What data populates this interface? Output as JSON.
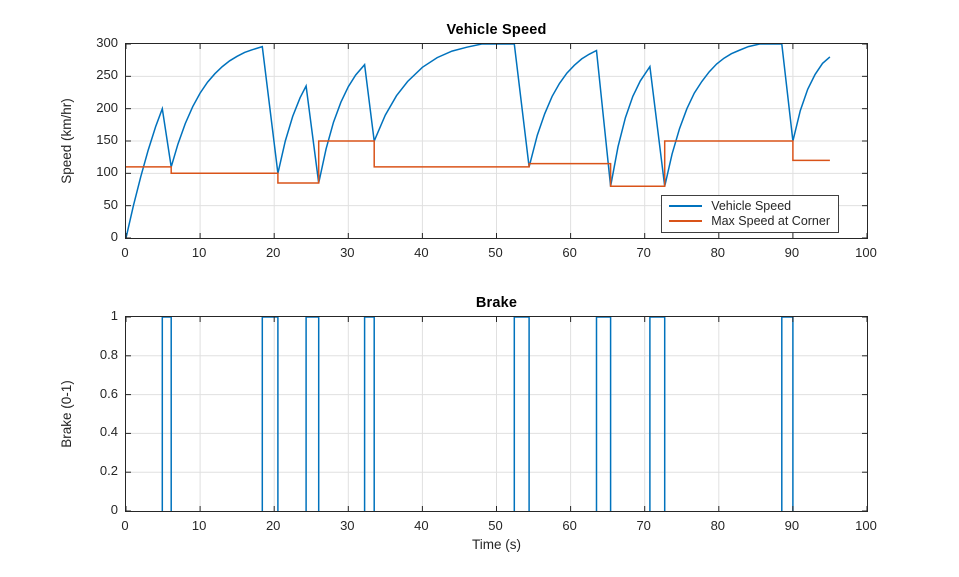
{
  "figure": {
    "background": "#ffffff"
  },
  "colors": {
    "series_blue": "#0072BD",
    "series_orange": "#D95319",
    "axis": "#262626",
    "grid": "#e0e0e0",
    "text": "#262626"
  },
  "chart_data": [
    {
      "type": "line",
      "title": "Vehicle Speed",
      "xlabel": "",
      "ylabel": "Speed (km/hr)",
      "xlim": [
        0,
        100
      ],
      "ylim": [
        0,
        300
      ],
      "xticks": [
        0,
        10,
        20,
        30,
        40,
        50,
        60,
        70,
        80,
        90,
        100
      ],
      "yticks": [
        0,
        50,
        100,
        150,
        200,
        250,
        300
      ],
      "grid": true,
      "legend": {
        "position": "bottom-right",
        "entries": [
          {
            "label": "Vehicle Speed",
            "color": "#0072BD"
          },
          {
            "label": "Max Speed at Corner",
            "color": "#D95319"
          }
        ]
      },
      "series": [
        {
          "name": "Vehicle Speed",
          "color": "#0072BD",
          "mode": "line",
          "points": [
            [
              0,
              0
            ],
            [
              1,
              50
            ],
            [
              2,
              95
            ],
            [
              3,
              136
            ],
            [
              4,
              172
            ],
            [
              4.9,
              200
            ],
            [
              6.1,
              110
            ],
            [
              7,
              145
            ],
            [
              8,
              177
            ],
            [
              9,
              203
            ],
            [
              10,
              224
            ],
            [
              11,
              241
            ],
            [
              12,
              254
            ],
            [
              13,
              265
            ],
            [
              14,
              274
            ],
            [
              15,
              281
            ],
            [
              16,
              287
            ],
            [
              17,
              291
            ],
            [
              18.4,
              296
            ],
            [
              20.5,
              100
            ],
            [
              21.5,
              150
            ],
            [
              22.5,
              188
            ],
            [
              23.5,
              217
            ],
            [
              24.3,
              235
            ],
            [
              26,
              85
            ],
            [
              27,
              138
            ],
            [
              28,
              179
            ],
            [
              29,
              210
            ],
            [
              30,
              234
            ],
            [
              31,
              252
            ],
            [
              32.2,
              268
            ],
            [
              33.5,
              150
            ],
            [
              35,
              190
            ],
            [
              36.5,
              220
            ],
            [
              38,
              242
            ],
            [
              40,
              264
            ],
            [
              42,
              279
            ],
            [
              44,
              289
            ],
            [
              46,
              295
            ],
            [
              48,
              300
            ],
            [
              52.4,
              300
            ],
            [
              54.4,
              110
            ],
            [
              55.5,
              159
            ],
            [
              56.5,
              192
            ],
            [
              57.5,
              219
            ],
            [
              58.5,
              239
            ],
            [
              59.5,
              255
            ],
            [
              60.5,
              267
            ],
            [
              61.5,
              277
            ],
            [
              62.5,
              284
            ],
            [
              63.5,
              290
            ],
            [
              65.4,
              80
            ],
            [
              66.4,
              141
            ],
            [
              67.4,
              186
            ],
            [
              68.4,
              219
            ],
            [
              69.4,
              243
            ],
            [
              70.7,
              265
            ],
            [
              72.7,
              80
            ],
            [
              73.7,
              130
            ],
            [
              74.7,
              169
            ],
            [
              75.7,
              200
            ],
            [
              76.7,
              224
            ],
            [
              77.7,
              242
            ],
            [
              78.7,
              257
            ],
            [
              79.7,
              269
            ],
            [
              80.7,
              278
            ],
            [
              81.7,
              285
            ],
            [
              82.7,
              290
            ],
            [
              84,
              296
            ],
            [
              85.5,
              300
            ],
            [
              88.5,
              300
            ],
            [
              90,
              150
            ],
            [
              91,
              197
            ],
            [
              92,
              230
            ],
            [
              93,
              253
            ],
            [
              94,
              270
            ],
            [
              95,
              280
            ]
          ]
        },
        {
          "name": "Max Speed at Corner",
          "color": "#D95319",
          "mode": "step",
          "segments": [
            [
              0,
              6.1,
              110
            ],
            [
              6.1,
              20.5,
              100
            ],
            [
              20.5,
              26,
              85
            ],
            [
              26,
              33.5,
              150
            ],
            [
              33.5,
              54.4,
              110
            ],
            [
              54.4,
              65.4,
              115
            ],
            [
              65.4,
              72.7,
              80
            ],
            [
              72.7,
              90,
              150
            ],
            [
              90,
              95,
              120
            ]
          ]
        }
      ]
    },
    {
      "type": "line",
      "title": "Brake",
      "xlabel": "Time (s)",
      "ylabel": "Brake (0-1)",
      "xlim": [
        0,
        100
      ],
      "ylim": [
        0,
        1
      ],
      "xticks": [
        0,
        10,
        20,
        30,
        40,
        50,
        60,
        70,
        80,
        90,
        100
      ],
      "yticks": [
        0,
        0.2,
        0.4,
        0.6,
        0.8,
        1
      ],
      "ytick_labels": [
        "0",
        "0.2",
        "0.4",
        "0.6",
        "0.8",
        "1"
      ],
      "grid": true,
      "series": [
        {
          "name": "Brake",
          "color": "#0072BD",
          "mode": "pulse",
          "pulses": [
            [
              4.9,
              6.1
            ],
            [
              18.4,
              20.5
            ],
            [
              24.3,
              26
            ],
            [
              32.2,
              33.5
            ],
            [
              52.4,
              54.4
            ],
            [
              63.5,
              65.4
            ],
            [
              70.7,
              72.7
            ],
            [
              88.5,
              90
            ]
          ]
        }
      ]
    }
  ]
}
